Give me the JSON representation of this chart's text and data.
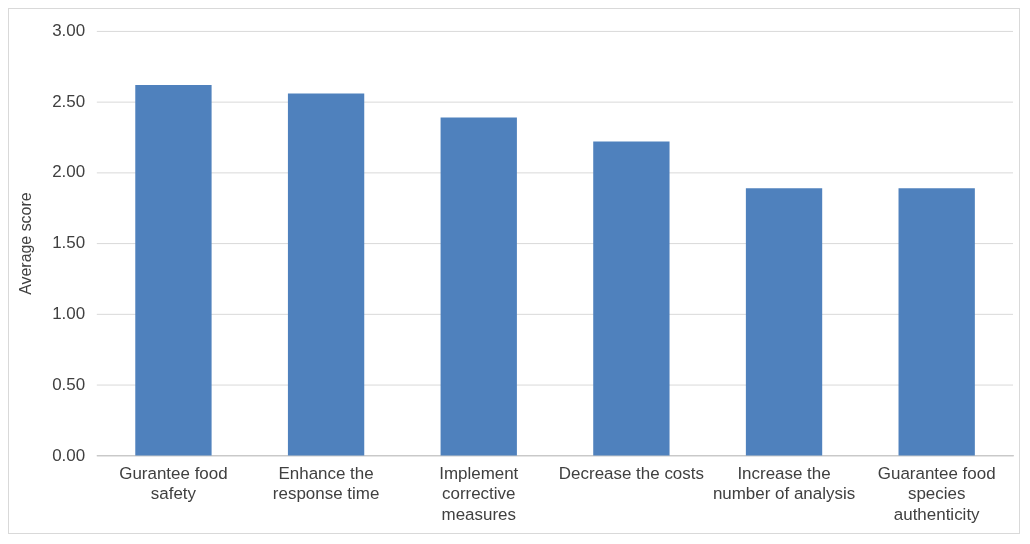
{
  "chart_data": {
    "type": "bar",
    "ylabel": "Average score",
    "categories": [
      "Gurantee food safety",
      "Enhance the response time",
      "Implement corrective measures",
      "Decrease the costs",
      "Increase the number of analysis",
      "Guarantee food species authenticity"
    ],
    "values": [
      2.62,
      2.56,
      2.39,
      2.22,
      1.89,
      1.89
    ],
    "color": "#4f81bd",
    "ylim": [
      0,
      3
    ],
    "yticks": [
      {
        "value": 0,
        "label": "0.00"
      },
      {
        "value": 0.5,
        "label": "0.50"
      },
      {
        "value": 1,
        "label": "1.00"
      },
      {
        "value": 1.5,
        "label": "1.50"
      },
      {
        "value": 2,
        "label": "2.00"
      },
      {
        "value": 2.5,
        "label": "2.50"
      },
      {
        "value": 3,
        "label": "3.00"
      }
    ],
    "grid": "y",
    "legend": false
  }
}
